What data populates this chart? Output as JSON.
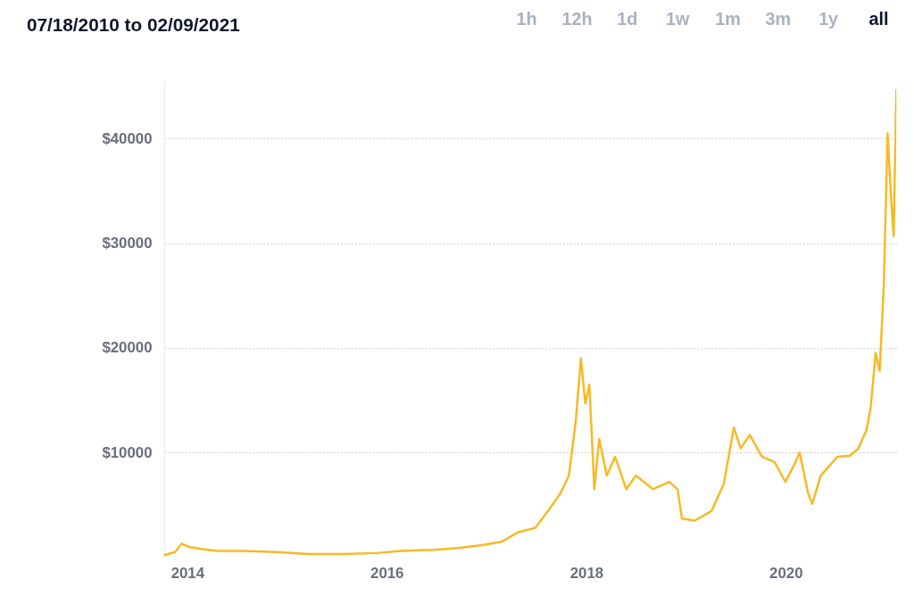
{
  "chart_data": {
    "type": "line",
    "title": "07/18/2010 to 02/09/2021",
    "annotations": [
      "1h",
      "12h",
      "1d",
      "1w",
      "1m",
      "3m",
      "1y",
      "all"
    ],
    "x": [
      "2013-10-08",
      "2013-11-17",
      "2013-12-12",
      "2014-01-04",
      "2014-02-18",
      "2014-04-20",
      "2014-07-20",
      "2014-11-20",
      "2015-03-22",
      "2015-07-24",
      "2015-11-24",
      "2016-02-24",
      "2016-06-24",
      "2016-09-26",
      "2016-12-27",
      "2017-02-27",
      "2017-04-27",
      "2017-06-28",
      "2017-08-13",
      "2017-09-28",
      "2017-10-29",
      "2017-11-23",
      "2017-12-12",
      "2017-12-28",
      "2018-01-12",
      "2018-01-30",
      "2018-02-17",
      "2018-03-17",
      "2018-04-16",
      "2018-05-27",
      "2018-07-02",
      "2018-09-01",
      "2018-11-01",
      "2018-12-01",
      "2018-12-17",
      "2019-02-02",
      "2019-04-04",
      "2019-05-19",
      "2019-06-25",
      "2019-07-20",
      "2019-08-22",
      "2019-10-06",
      "2019-11-21",
      "2019-12-31",
      "2020-02-06",
      "2020-02-21",
      "2020-03-23",
      "2020-04-07",
      "2020-05-08",
      "2020-07-08",
      "2020-08-23",
      "2020-09-23",
      "2020-10-23",
      "2020-11-07",
      "2020-11-25",
      "2020-12-10",
      "2020-12-25",
      "2021-01-08",
      "2021-01-22",
      "2021-01-30",
      "2021-02-09"
    ],
    "series": [
      {
        "color": "#f7b924",
        "values": [
          200,
          500,
          1300,
          1000,
          800,
          600,
          600,
          500,
          300,
          300,
          400,
          600,
          700,
          900,
          1200,
          1500,
          2400,
          2800,
          4400,
          6100,
          7800,
          13000,
          19000,
          14700,
          16500,
          6500,
          11300,
          7800,
          9600,
          6500,
          7800,
          6500,
          7200,
          6500,
          3700,
          3500,
          4400,
          7000,
          12400,
          10400,
          11700,
          9600,
          9100,
          7200,
          9100,
          10000,
          6100,
          5100,
          7800,
          9600,
          9700,
          10400,
          12200,
          14300,
          19500,
          17800,
          26000,
          40500,
          33700,
          30700,
          44700
        ]
      }
    ],
    "ylim": [
      0,
      45500
    ],
    "yticks": [
      {
        "value": 10000,
        "label": "$10000"
      },
      {
        "value": 20000,
        "label": "$20000"
      },
      {
        "value": 30000,
        "label": "$30000"
      },
      {
        "value": 40000,
        "label": "$40000"
      }
    ],
    "xlim": [
      "2013-10-08",
      "2021-02-09"
    ],
    "xticks": [
      {
        "value": "2014",
        "label": "2014"
      },
      {
        "value": "2016",
        "label": "2016"
      },
      {
        "value": "2018",
        "label": "2018"
      },
      {
        "value": "2020",
        "label": "2020"
      }
    ],
    "grid": "y",
    "marker": "none",
    "line_style": "solid"
  }
}
